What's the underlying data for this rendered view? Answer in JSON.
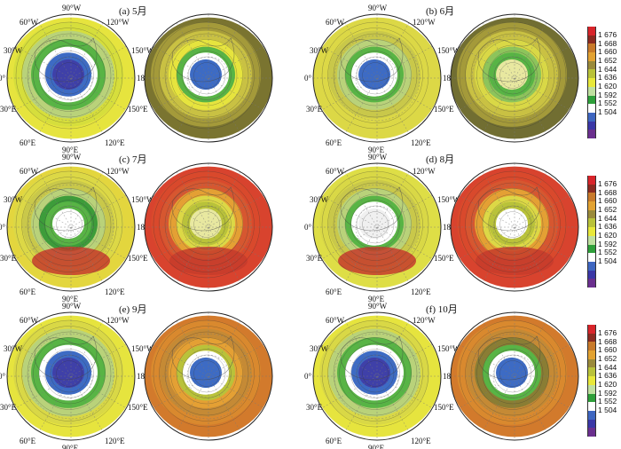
{
  "panels": [
    {
      "title": "(a) 5月"
    },
    {
      "title": "(b) 6月"
    },
    {
      "title": "(c) 7月"
    },
    {
      "title": "(d) 8月"
    },
    {
      "title": "(e) 9月"
    },
    {
      "title": "(f) 10月"
    }
  ],
  "longitude_labels": {
    "top_left": "60°W",
    "top": "90°W",
    "top_right": "120°W",
    "upper_left": "30°W",
    "upper_right": "150°W",
    "left": "0°",
    "right": "180°",
    "lower_left": "30°E",
    "lower_right": "150°E",
    "bottom_left": "60°E",
    "bottom": "90°E",
    "bottom_right": "120°E"
  },
  "colorbar": {
    "labels": [
      "1 676",
      "1 668",
      "1 660",
      "1 652",
      "1 644",
      "1 636",
      "1 620",
      "1 592",
      "1 552",
      "1 504"
    ],
    "colors": [
      "#d8242a",
      "#8b2a20",
      "#c87a2a",
      "#e2a232",
      "#9a8a3a",
      "#b9c23a",
      "#e8e83a",
      "#bfe0a0",
      "#2e9f3a",
      "#ffffff",
      "#3e66c0",
      "#3a37a6",
      "#6a2f8e"
    ]
  },
  "maps": [
    {
      "bands": [
        "#e6e43e",
        "#d6de3c",
        "#b9d27a",
        "#58b445",
        "#ffffff",
        "#3d6bc4",
        "#3f40a8"
      ],
      "hot": false
    },
    {
      "bands": [
        "#7a7430",
        "#a49a3a",
        "#c9c143",
        "#e6e43e",
        "#58b445",
        "#ffffff",
        "#3d6bc4"
      ],
      "hot": false
    },
    {
      "bands": [
        "#dcd846",
        "#dcd846",
        "#c9c84a",
        "#b9d27a",
        "#58b445",
        "#ffffff",
        "#3d6bc4"
      ],
      "hot": false
    },
    {
      "bands": [
        "#716e32",
        "#a49a3a",
        "#c9c143",
        "#d9d846",
        "#8dc45b",
        "#58b445",
        "#e8e8a0"
      ],
      "hot": false
    },
    {
      "bands": [
        "#e3d63e",
        "#dcd846",
        "#c9c84a",
        "#b9d27a",
        "#3d9c3a",
        "#58b445",
        "#ffffff"
      ],
      "hot": true
    },
    {
      "bands": [
        "#d8432e",
        "#d9492c",
        "#d65730",
        "#e4a034",
        "#dcd846",
        "#b9c23a",
        "#e8e8a0"
      ],
      "hot": true
    },
    {
      "bands": [
        "#dede46",
        "#d9d846",
        "#c9c84a",
        "#b9d27a",
        "#58b445",
        "#ffffff",
        "#f0f0f0"
      ],
      "hot": true
    },
    {
      "bands": [
        "#d8432e",
        "#d9492c",
        "#d65730",
        "#e4a034",
        "#dcd846",
        "#b9c23a",
        "#ffffff"
      ],
      "hot": true
    },
    {
      "bands": [
        "#e6e43e",
        "#d9d846",
        "#b9d27a",
        "#58b445",
        "#ffffff",
        "#3d6bc4",
        "#3f40a8"
      ],
      "hot": false
    },
    {
      "bands": [
        "#d27a2c",
        "#d9892e",
        "#c58a35",
        "#e4a034",
        "#b9c23a",
        "#ffffff",
        "#3d6bc4"
      ],
      "hot": false
    },
    {
      "bands": [
        "#e6e43e",
        "#d9d846",
        "#b9d27a",
        "#58b445",
        "#ffffff",
        "#3d6bc4",
        "#3f40a8"
      ],
      "hot": false
    },
    {
      "bands": [
        "#d27a2c",
        "#d9892e",
        "#c58a35",
        "#8a7d34",
        "#58b445",
        "#ffffff",
        "#3d6bc4"
      ],
      "hot": false
    }
  ]
}
